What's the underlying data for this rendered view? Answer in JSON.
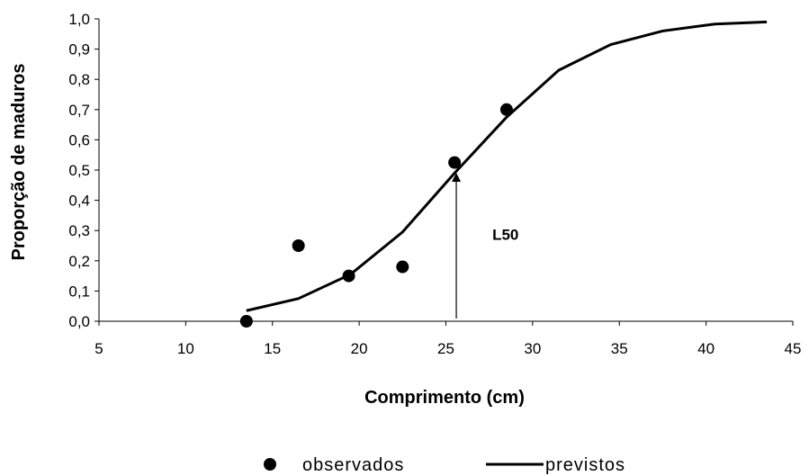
{
  "chart_data": {
    "type": "scatter",
    "xlabel": "Comprimento (cm)",
    "ylabel": "Proporção de maduros",
    "xlim": [
      5,
      45
    ],
    "ylim": [
      0,
      1
    ],
    "x_ticks": [
      "5",
      "10",
      "15",
      "20",
      "25",
      "30",
      "35",
      "40",
      "45"
    ],
    "y_ticks": [
      "0,0",
      "0,1",
      "0,2",
      "0,3",
      "0,4",
      "0,5",
      "0,6",
      "0,7",
      "0,8",
      "0,9",
      "1,0"
    ],
    "grid": false,
    "legend_position": "bottom",
    "series": [
      {
        "name": "observados",
        "kind": "scatter",
        "points": [
          {
            "x": 13.5,
            "y": 0.0
          },
          {
            "x": 16.5,
            "y": 0.25
          },
          {
            "x": 19.4,
            "y": 0.15
          },
          {
            "x": 22.5,
            "y": 0.18
          },
          {
            "x": 25.5,
            "y": 0.525
          },
          {
            "x": 28.5,
            "y": 0.7
          }
        ]
      },
      {
        "name": "previstos",
        "kind": "line",
        "points": [
          {
            "x": 13.5,
            "y": 0.035
          },
          {
            "x": 16.5,
            "y": 0.075
          },
          {
            "x": 19.5,
            "y": 0.155
          },
          {
            "x": 22.5,
            "y": 0.295
          },
          {
            "x": 25.5,
            "y": 0.49
          },
          {
            "x": 28.5,
            "y": 0.675
          },
          {
            "x": 31.5,
            "y": 0.83
          },
          {
            "x": 34.5,
            "y": 0.915
          },
          {
            "x": 37.5,
            "y": 0.96
          },
          {
            "x": 40.5,
            "y": 0.983
          },
          {
            "x": 43.5,
            "y": 0.99
          }
        ]
      }
    ],
    "annotations": [
      {
        "text": "L50",
        "x": 25.6,
        "y": 0.5,
        "kind": "arrow-from-axis"
      }
    ]
  }
}
